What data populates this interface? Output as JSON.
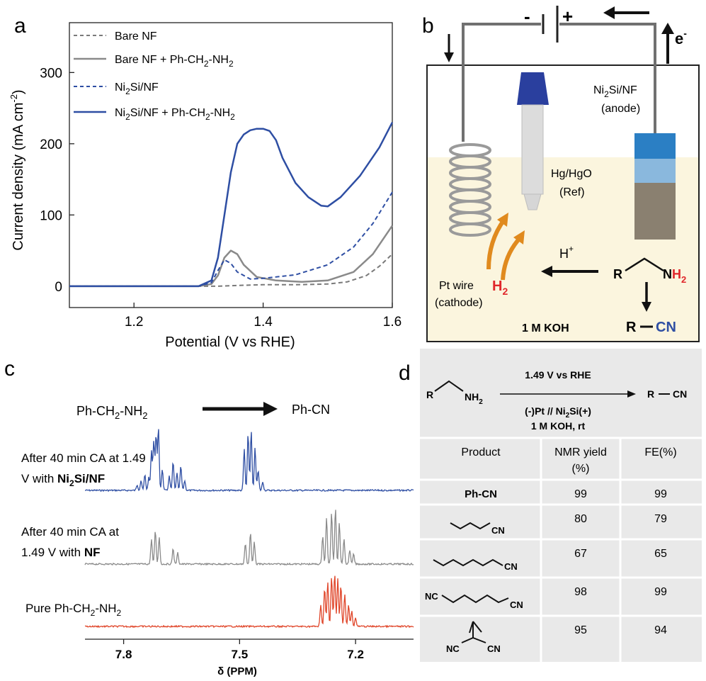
{
  "panels": {
    "a": "a",
    "b": "b",
    "c": "c",
    "d": "d"
  },
  "colors": {
    "bare": "#7a7a7a",
    "bare_amine": "#8a8a8a",
    "ni2si": "#2e4ea3",
    "ni2si_amine": "#2e4ea3",
    "nmr_blue": "#2e4ea3",
    "nmr_gray": "#8a8a8a",
    "nmr_red": "#e0462a",
    "electrolyte": "#fbf5de",
    "table_bg": "#e9e9e9"
  },
  "chart_data": [
    {
      "type": "line",
      "panel": "a",
      "xlabel": "Potential (V vs RHE)",
      "ylabel": "Current density (mA cm",
      "ylabel_sup": "-2",
      "ylabel_end": ")",
      "xlim": [
        1.1,
        1.6
      ],
      "ylim": [
        -30,
        370
      ],
      "x_ticks": [
        "1.2",
        "1.4",
        "1.6"
      ],
      "x_tick_values": [
        1.2,
        1.4,
        1.6
      ],
      "y_ticks": [
        "0",
        "100",
        "200",
        "300"
      ],
      "y_tick_values": [
        0,
        100,
        200,
        300
      ],
      "legend_position": "top-left",
      "legend": [
        {
          "pre": "Bare NF",
          "sub1": "",
          "mid": "",
          "sub2": "",
          "post": "",
          "style": "dashed",
          "color": "#7a7a7a"
        },
        {
          "pre": "Bare NF + Ph-CH",
          "sub1": "2",
          "mid": "-NH",
          "sub2": "2",
          "post": "",
          "style": "solid",
          "color": "#8a8a8a"
        },
        {
          "pre": "Ni",
          "sub1": "2",
          "mid": "Si/NF",
          "sub2": "",
          "post": "",
          "style": "dashed",
          "color": "#2e4ea3"
        },
        {
          "pre": "Ni",
          "sub1": "2",
          "mid": "Si/NF + Ph-CH",
          "sub2": "2",
          "post": "-NH",
          "sub3": "2",
          "style": "solid",
          "color": "#2e4ea3"
        }
      ],
      "series": [
        {
          "name": "Bare NF",
          "style": "dashed",
          "color": "#7a7a7a",
          "x": [
            1.1,
            1.3,
            1.33,
            1.36,
            1.4,
            1.45,
            1.5,
            1.53,
            1.56,
            1.58,
            1.6
          ],
          "y": [
            0,
            0,
            0,
            1,
            2,
            2,
            3,
            6,
            15,
            28,
            45
          ]
        },
        {
          "name": "Bare NF + Ph-CH2-NH2",
          "style": "solid",
          "color": "#8a8a8a",
          "x": [
            1.1,
            1.3,
            1.32,
            1.33,
            1.34,
            1.35,
            1.36,
            1.37,
            1.39,
            1.42,
            1.46,
            1.5,
            1.54,
            1.57,
            1.6
          ],
          "y": [
            0,
            0,
            3,
            15,
            40,
            50,
            45,
            30,
            13,
            8,
            6,
            8,
            20,
            45,
            85
          ]
        },
        {
          "name": "Ni2Si/NF",
          "style": "dashed",
          "color": "#2e4ea3",
          "x": [
            1.1,
            1.3,
            1.32,
            1.33,
            1.34,
            1.35,
            1.36,
            1.38,
            1.4,
            1.45,
            1.5,
            1.54,
            1.57,
            1.6
          ],
          "y": [
            0,
            0,
            5,
            22,
            37,
            32,
            20,
            10,
            11,
            16,
            30,
            55,
            88,
            132
          ]
        },
        {
          "name": "Ni2Si/NF + Ph-CH2-NH2",
          "style": "solid",
          "color": "#2e4ea3",
          "x": [
            1.1,
            1.3,
            1.32,
            1.33,
            1.34,
            1.35,
            1.36,
            1.37,
            1.38,
            1.39,
            1.4,
            1.41,
            1.42,
            1.43,
            1.45,
            1.47,
            1.49,
            1.5,
            1.52,
            1.55,
            1.58,
            1.6
          ],
          "y": [
            0,
            0,
            8,
            40,
            100,
            160,
            200,
            213,
            219,
            221,
            221,
            218,
            205,
            180,
            145,
            125,
            113,
            112,
            125,
            155,
            195,
            230
          ]
        }
      ]
    },
    {
      "type": "line",
      "panel": "c",
      "xlabel": "δ (PPM)",
      "xlim": [
        7.9,
        7.05
      ],
      "x_ticks": [
        "7.8",
        "7.5",
        "7.2"
      ],
      "x_tick_values": [
        7.8,
        7.5,
        7.2
      ],
      "series": [
        {
          "name": "After 40 min CA at 1.49 V with Ni2Si/NF",
          "color": "#2e4ea3",
          "baseline_offset": 0,
          "peaks": [
            [
              7.765,
              8
            ],
            [
              7.755,
              14
            ],
            [
              7.745,
              22
            ],
            [
              7.735,
              18
            ],
            [
              7.728,
              55
            ],
            [
              7.722,
              70
            ],
            [
              7.716,
              78
            ],
            [
              7.71,
              88
            ],
            [
              7.7,
              30
            ],
            [
              7.682,
              20
            ],
            [
              7.672,
              40
            ],
            [
              7.662,
              24
            ],
            [
              7.652,
              34
            ],
            [
              7.642,
              14
            ],
            [
              7.488,
              58
            ],
            [
              7.478,
              80
            ],
            [
              7.47,
              84
            ],
            [
              7.46,
              60
            ],
            [
              7.452,
              28
            ],
            [
              7.44,
              12
            ]
          ]
        },
        {
          "name": "After 40 min CA at 1.49 V with NF",
          "color": "#8a8a8a",
          "baseline_offset": 0,
          "peaks": [
            [
              7.728,
              35
            ],
            [
              7.718,
              48
            ],
            [
              7.708,
              38
            ],
            [
              7.672,
              22
            ],
            [
              7.66,
              16
            ],
            [
              7.485,
              30
            ],
            [
              7.472,
              44
            ],
            [
              7.462,
              32
            ],
            [
              7.285,
              40
            ],
            [
              7.275,
              65
            ],
            [
              7.262,
              72
            ],
            [
              7.252,
              80
            ],
            [
              7.242,
              58
            ],
            [
              7.23,
              35
            ],
            [
              7.215,
              20
            ],
            [
              7.205,
              14
            ]
          ]
        },
        {
          "name": "Pure Ph-CH2-NH2",
          "color": "#e0462a",
          "baseline_offset": 0,
          "peaks": [
            [
              7.29,
              30
            ],
            [
              7.28,
              55
            ],
            [
              7.272,
              62
            ],
            [
              7.262,
              70
            ],
            [
              7.254,
              75
            ],
            [
              7.246,
              68
            ],
            [
              7.238,
              58
            ],
            [
              7.228,
              45
            ],
            [
              7.218,
              30
            ],
            [
              7.21,
              22
            ],
            [
              7.2,
              12
            ]
          ]
        }
      ]
    }
  ],
  "panel_b": {
    "minus": "-",
    "plus": "+",
    "electron_pre": "e",
    "electron_sup": "-",
    "anode_line1": "Ni",
    "anode_sub": "2",
    "anode_line1_rest": "Si/NF",
    "anode_line2": "(anode)",
    "ref_line1": "Hg/HgO",
    "ref_line2": "(Ref)",
    "proton": "H",
    "proton_sup": "+",
    "h2_pre": "H",
    "h2_sub": "2",
    "cathode_line1": "Pt wire",
    "cathode_line2": "(cathode)",
    "electrolyte": "1 M KOH",
    "r_label": "R",
    "nh2_n": "N",
    "nh2_h": "H",
    "nh2_sub": "2",
    "product_r": "R",
    "product_cn": "CN"
  },
  "panel_c": {
    "reactant_pre": "Ph-CH",
    "reactant_sub1": "2",
    "reactant_mid": "-NH",
    "reactant_sub2": "2",
    "product": "Ph-CN",
    "trace1_line1": "After 40 min CA at 1.49",
    "trace1_line2_pre": "V with ",
    "trace1_bold_pre": "Ni",
    "trace1_bold_sub": "2",
    "trace1_bold_rest": "Si/NF",
    "trace2_line1": "After 40 min CA at",
    "trace2_line2_pre": "1.49 V with ",
    "trace2_bold": "NF",
    "trace3_pre": "Pure Ph-CH",
    "trace3_sub1": "2",
    "trace3_mid": "-NH",
    "trace3_sub2": "2"
  },
  "panel_d": {
    "reaction": {
      "r": "R",
      "nh2": "NH",
      "nh2_sub": "2",
      "condition_top": "1.49 V vs RHE",
      "condition_bottom_pre": "(-)Pt // Ni",
      "condition_bottom_sub": "2",
      "condition_bottom_rest": "Si(+)",
      "condition_bottom2": "1 M KOH, rt",
      "product_r": "R",
      "product_cn": "CN"
    },
    "table": {
      "headers": [
        "Product",
        "NMR yield",
        "FE(%)"
      ],
      "header2_line2": "(%)",
      "rows": [
        {
          "product": "Ph-CN",
          "yield": "99",
          "fe": "99"
        },
        {
          "product": "CN",
          "yield": "80",
          "fe": "79"
        },
        {
          "product": "CN",
          "yield": "67",
          "fe": "65"
        },
        {
          "product": "NC",
          "product2": "CN",
          "yield": "98",
          "fe": "99"
        },
        {
          "product": "NC",
          "product2": "CN",
          "yield": "95",
          "fe": "94"
        }
      ]
    }
  }
}
